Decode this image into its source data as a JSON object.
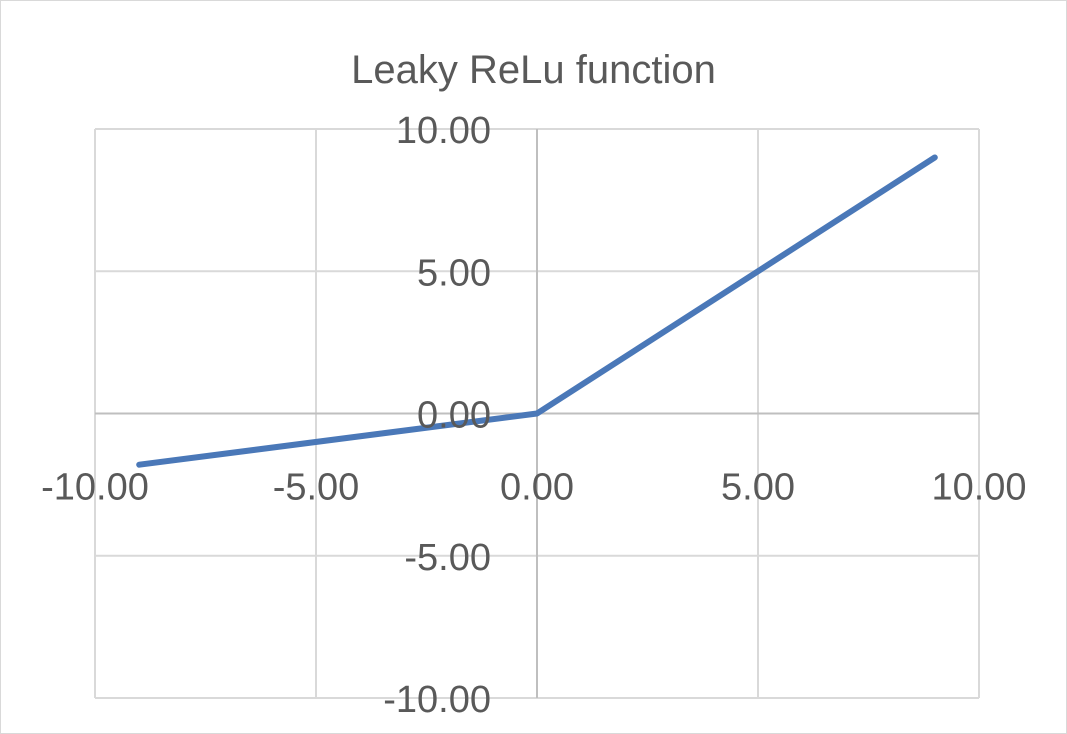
{
  "chart_data": {
    "type": "line",
    "title": "Leaky ReLu function",
    "xlabel": "",
    "ylabel": "",
    "xlim": [
      -10,
      10
    ],
    "ylim": [
      -10,
      10
    ],
    "x_ticks": [
      -10,
      -5,
      0,
      5,
      10
    ],
    "y_ticks": [
      -10,
      -5,
      0,
      5,
      10
    ],
    "x_tick_labels": [
      "-10.00",
      "-5.00",
      "0.00",
      "5.00",
      "10.00"
    ],
    "y_tick_labels": [
      "-10.00",
      "-5.00",
      "0.00",
      "5.00",
      "10.00"
    ],
    "grid": true,
    "legend": "none",
    "series": [
      {
        "color": "#4a78b8",
        "x": [
          -9,
          0,
          9
        ],
        "y": [
          -1.8,
          0,
          9
        ]
      }
    ]
  }
}
